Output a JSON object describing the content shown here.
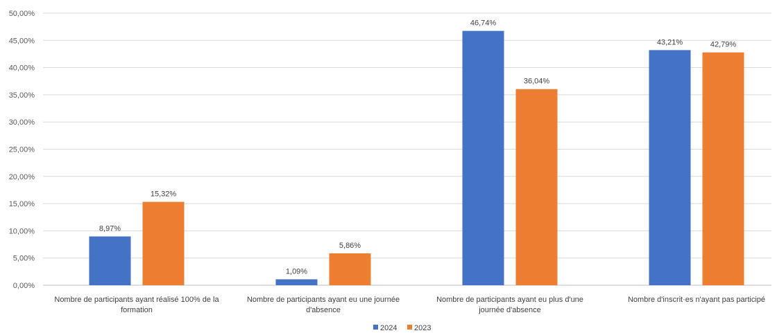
{
  "chart_data": {
    "type": "bar",
    "title": "",
    "xlabel": "",
    "ylabel": "",
    "ylim": [
      0,
      50
    ],
    "yticks": [
      0,
      5,
      10,
      15,
      20,
      25,
      30,
      35,
      40,
      45,
      50
    ],
    "ytick_labels": [
      "0,00%",
      "5,00%",
      "10,00%",
      "15,00%",
      "20,00%",
      "25,00%",
      "30,00%",
      "35,00%",
      "40,00%",
      "45,00%",
      "50,00%"
    ],
    "grid": true,
    "legend_position": "bottom",
    "categories": [
      [
        "Nombre de participants ayant réalisé 100% de la",
        "formation"
      ],
      [
        "Nombre de participants ayant eu une journée",
        "d'absence"
      ],
      [
        "Nombre de participants ayant eu plus d'une",
        "journée d'absence"
      ],
      [
        "Nombre d'inscrit·es n'ayant pas participé"
      ]
    ],
    "series": [
      {
        "name": "2024",
        "color": "#4472C4",
        "values": [
          8.97,
          1.09,
          46.74,
          43.21
        ],
        "labels": [
          "8,97%",
          "1,09%",
          "46,74%",
          "43,21%"
        ]
      },
      {
        "name": "2023",
        "color": "#ED7D31",
        "values": [
          15.32,
          5.86,
          36.04,
          42.79
        ],
        "labels": [
          "15,32%",
          "5,86%",
          "36,04%",
          "42,79%"
        ]
      }
    ]
  }
}
